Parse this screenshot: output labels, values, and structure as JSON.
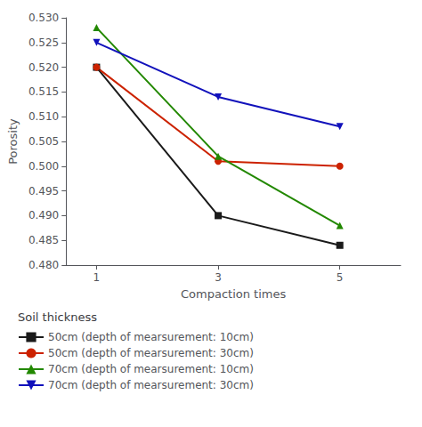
{
  "chart_data": {
    "type": "line",
    "x": [
      1,
      3,
      5
    ],
    "series": [
      {
        "name": "50cm (depth of mearsurement: 10cm)",
        "values": [
          0.52,
          0.49,
          0.484
        ],
        "color": "#1a1a1a",
        "marker": "square"
      },
      {
        "name": "50cm (depth of mearsurement: 30cm)",
        "values": [
          0.52,
          0.501,
          0.5
        ],
        "color": "#cc2200",
        "marker": "circle"
      },
      {
        "name": "70cm (depth of mearsurement: 10cm)",
        "values": [
          0.528,
          0.502,
          0.488
        ],
        "color": "#228800",
        "marker": "triangle_up"
      },
      {
        "name": "70cm (depth of mearsurement: 30cm)",
        "values": [
          0.525,
          0.514,
          0.508
        ],
        "color": "#1111bb",
        "marker": "triangle_down"
      }
    ],
    "xlabel": "Compaction times",
    "ylabel": "Porosity",
    "legend_title": "Soil thickness",
    "xlim": [
      0.5,
      6.0
    ],
    "xticks": [
      1,
      3,
      5
    ],
    "ylim": [
      0.48,
      0.53
    ],
    "yticks": [
      {
        "value": 0.48,
        "label": "0.480"
      },
      0.485,
      {
        "value": 0.49,
        "label": "0.490"
      },
      0.495,
      {
        "value": 0.5,
        "label": "0.500"
      },
      0.505,
      {
        "value": 0.51,
        "label": "0.510"
      },
      0.515,
      {
        "value": 0.52,
        "label": "0.520"
      },
      0.525,
      {
        "value": 0.53,
        "label": "0.530"
      }
    ],
    "grid": false,
    "legend": "bottom left"
  }
}
